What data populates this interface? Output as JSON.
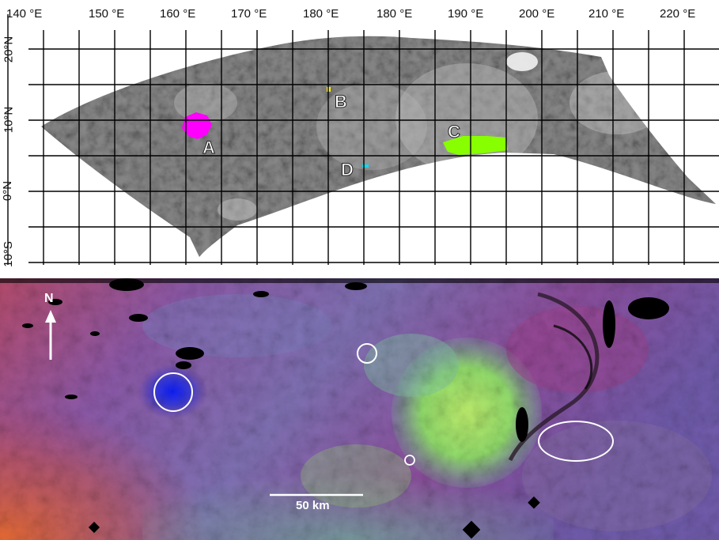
{
  "map": {
    "longitude_labels": [
      "140 °E",
      "150 °E",
      "160 °E",
      "170 °E",
      "180 °E",
      "180 °E",
      "190 °E",
      "200 °E",
      "210 °E",
      "220 °E"
    ],
    "latitude_labels": [
      "20°N",
      "10°N",
      "0°N",
      "10°S"
    ],
    "regions": [
      {
        "label": "A",
        "color": "#ff00ff"
      },
      {
        "label": "B",
        "color": "#ffee00"
      },
      {
        "label": "C",
        "color": "#88ff00"
      },
      {
        "label": "D",
        "color": "#00ddee"
      }
    ]
  },
  "color_mosaic": {
    "north_label": "N",
    "scale_bar_label": "50 km"
  }
}
